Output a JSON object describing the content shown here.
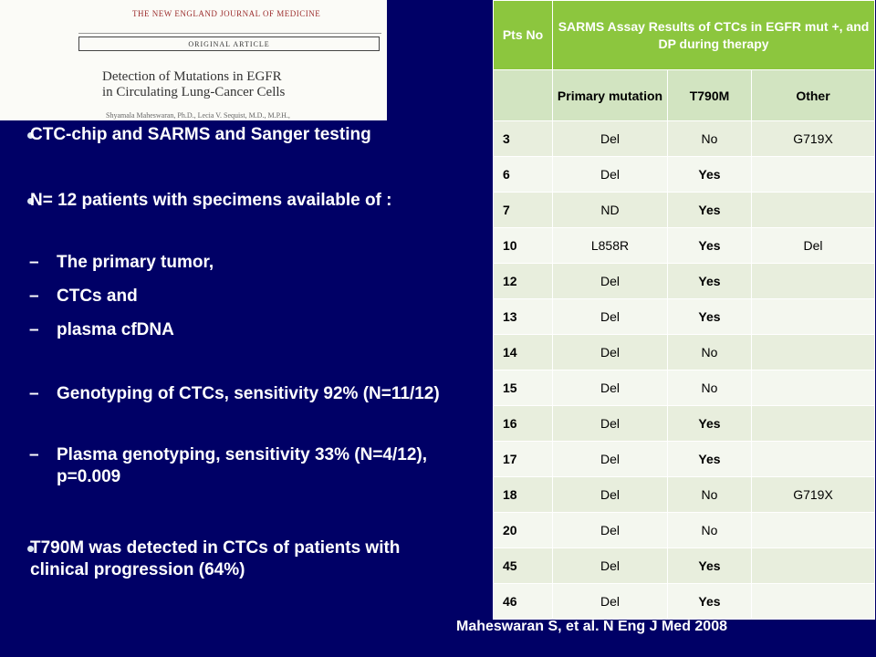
{
  "clipping": {
    "journal": "The NEW ENGLAND JOURNAL of MEDICINE",
    "section": "ORIGINAL ARTICLE",
    "title_line1": "Detection of Mutations in EGFR",
    "title_line2": "in Circulating Lung-Cancer Cells",
    "authors": "Shyamala Maheswaran, Ph.D., Lecia V. Sequist, M.D., M.P.H.,"
  },
  "bullets": [
    {
      "text": "CTC-chip and SARMS and Sanger testing"
    },
    {
      "text": "N= 12 patients with  specimens  available of :"
    },
    {
      "text": "T790M was detected  in CTCs  of patients with clinical progression  (64%)"
    }
  ],
  "sub_bullets": [
    {
      "dash": "–",
      "text": "The primary tumor,"
    },
    {
      "dash": "–",
      "text": "CTCs    and"
    },
    {
      "dash": "–",
      "text": "plasma cfDNA"
    },
    {
      "dash": "–",
      "text": "Genotyping of CTCs,  sensitivity 92% (N=11/12)"
    },
    {
      "dash": "–",
      "text": "Plasma genotyping,  sensitivity 33% (N=4/12), p=0.009"
    }
  ],
  "table": {
    "header": {
      "col1": "Pts No",
      "col2": "SARMS Assay Results of CTCs in EGFR mut +, and DP during therapy"
    },
    "subheader": [
      "",
      "Primary mutation",
      "T790M",
      "Other"
    ],
    "rows": [
      {
        "pt": "3",
        "primary": "Del",
        "t790m": "No",
        "other": "G719X"
      },
      {
        "pt": "6",
        "primary": "Del",
        "t790m": "Yes",
        "other": ""
      },
      {
        "pt": "7",
        "primary": "ND",
        "t790m": "Yes",
        "other": ""
      },
      {
        "pt": "10",
        "primary": "L858R",
        "t790m": "Yes",
        "other": "Del"
      },
      {
        "pt": "12",
        "primary": "Del",
        "t790m": "Yes",
        "other": ""
      },
      {
        "pt": "13",
        "primary": "Del",
        "t790m": "Yes",
        "other": ""
      },
      {
        "pt": "14",
        "primary": "Del",
        "t790m": "No",
        "other": ""
      },
      {
        "pt": "15",
        "primary": "Del",
        "t790m": "No",
        "other": ""
      },
      {
        "pt": "16",
        "primary": "Del",
        "t790m": "Yes",
        "other": ""
      },
      {
        "pt": "17",
        "primary": "Del",
        "t790m": "Yes",
        "other": ""
      },
      {
        "pt": "18",
        "primary": "Del",
        "t790m": "No",
        "other": "G719X"
      },
      {
        "pt": "20",
        "primary": "Del",
        "t790m": "No",
        "other": ""
      },
      {
        "pt": "45",
        "primary": "Del",
        "t790m": "Yes",
        "other": ""
      },
      {
        "pt": "46",
        "primary": "Del",
        "t790m": "Yes",
        "other": ""
      }
    ]
  },
  "citation": "Maheswaran S, et al. N Eng J Med 2008",
  "colors": {
    "background": "#000066",
    "header_green": "#8cc63e",
    "subheader_green": "#d2e4c1"
  }
}
